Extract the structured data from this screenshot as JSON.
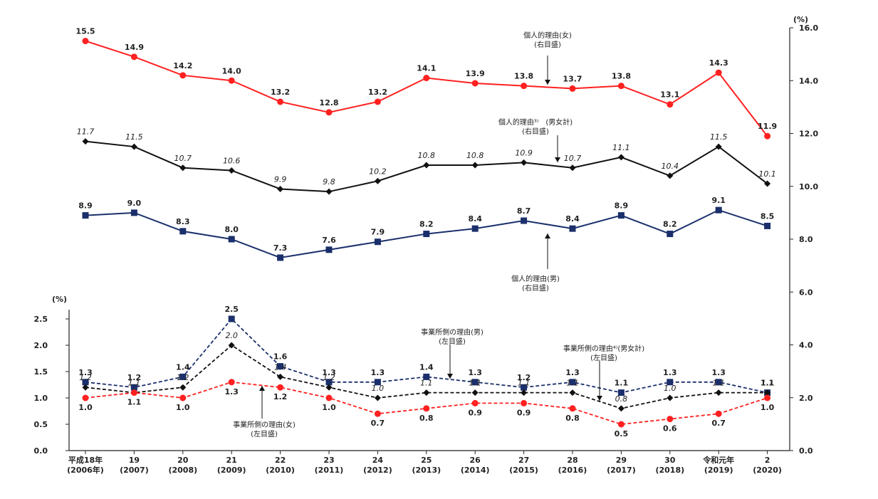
{
  "chart_data": {
    "type": "line",
    "categories": [
      [
        "平成18年",
        "(2006年)"
      ],
      [
        "19",
        "(2007)"
      ],
      [
        "20",
        "(2008)"
      ],
      [
        "21",
        "(2009)"
      ],
      [
        "22",
        "(2010)"
      ],
      [
        "23",
        "(2011)"
      ],
      [
        "24",
        "(2012)"
      ],
      [
        "25",
        "(2013)"
      ],
      [
        "26",
        "(2014)"
      ],
      [
        "27",
        "(2015)"
      ],
      [
        "28",
        "(2016)"
      ],
      [
        "29",
        "(2017)"
      ],
      [
        "30",
        "(2018)"
      ],
      [
        "令和元年",
        "(2019)"
      ],
      [
        "2",
        "(2020)"
      ]
    ],
    "left_axis": {
      "unit": "(%)",
      "ylim": [
        0,
        2.5
      ],
      "ticks": [
        "0.0",
        "0.5",
        "1.0",
        "1.5",
        "2.0",
        "2.5"
      ]
    },
    "right_axis": {
      "unit": "(%)",
      "ylim": [
        0,
        16
      ],
      "ticks": [
        "0.0",
        "2.0",
        "4.0",
        "6.0",
        "8.0",
        "10.0",
        "12.0",
        "14.0",
        "16.0"
      ]
    },
    "series": [
      {
        "key": "personal_female",
        "axis": "right",
        "color": "#ff2020",
        "marker": "circle",
        "dashed": false,
        "label_style": "bold",
        "label_pos": "above",
        "values": [
          15.5,
          14.9,
          14.2,
          14.0,
          13.2,
          12.8,
          13.2,
          14.1,
          13.9,
          13.8,
          13.7,
          13.8,
          13.1,
          14.3,
          11.9
        ],
        "labels": [
          "15.5",
          "14.9",
          "14.2",
          "14.0",
          "13.2",
          "12.8",
          "13.2",
          "14.1",
          "13.9",
          "13.8",
          "13.7",
          "13.8",
          "13.1",
          "14.3",
          "11.9"
        ]
      },
      {
        "key": "personal_total",
        "axis": "right",
        "color": "#111111",
        "marker": "diamond",
        "dashed": false,
        "label_style": "italic",
        "label_pos": "above",
        "values": [
          11.7,
          11.5,
          10.7,
          10.6,
          9.9,
          9.8,
          10.2,
          10.8,
          10.8,
          10.9,
          10.7,
          11.1,
          10.4,
          11.5,
          10.1
        ],
        "labels": [
          "11.7",
          "11.5",
          "10.7",
          "10.6",
          "9.9",
          "9.8",
          "10.2",
          "10.8",
          "10.8",
          "10.9",
          "10.7",
          "11.1",
          "10.4",
          "11.5",
          "10.1"
        ]
      },
      {
        "key": "personal_male",
        "axis": "right",
        "color": "#1a2f6b",
        "marker": "square",
        "dashed": false,
        "label_style": "bold",
        "label_pos": "above",
        "values": [
          8.9,
          9.0,
          8.3,
          8.0,
          7.3,
          7.6,
          7.9,
          8.2,
          8.4,
          8.7,
          8.4,
          8.9,
          8.2,
          9.1,
          8.5
        ],
        "labels": [
          "8.9",
          "9.0",
          "8.3",
          "8.0",
          "7.3",
          "7.6",
          "7.9",
          "8.2",
          "8.4",
          "8.7",
          "8.4",
          "8.9",
          "8.2",
          "9.1",
          "8.5"
        ]
      },
      {
        "key": "employer_male",
        "axis": "left",
        "color": "#1a2f6b",
        "marker": "square",
        "dashed": true,
        "label_style": "bold",
        "label_pos": "above",
        "values": [
          1.3,
          1.2,
          1.4,
          2.5,
          1.6,
          1.3,
          1.3,
          1.4,
          1.3,
          1.2,
          1.3,
          1.1,
          1.3,
          1.3,
          1.1
        ],
        "labels": [
          "1.3",
          "1.2",
          "1.4",
          "2.5",
          "1.6",
          "1.3",
          "1.3",
          "1.4",
          "1.3",
          "1.2",
          "1.3",
          "1.1",
          "1.3",
          "1.3",
          "1.1"
        ]
      },
      {
        "key": "employer_total",
        "axis": "left",
        "color": "#111111",
        "marker": "diamond",
        "dashed": true,
        "label_style": "italic",
        "label_pos": "above",
        "values": [
          1.2,
          1.1,
          1.2,
          2.0,
          1.4,
          1.2,
          1.0,
          1.1,
          1.1,
          1.1,
          1.1,
          0.8,
          1.0,
          1.1,
          1.1
        ],
        "labels": [
          "1.2",
          "1.1",
          "1.2",
          "2.0",
          "1.4",
          "1.2",
          "1.0",
          "1.1",
          "1.1",
          "1.1",
          "1.1",
          "0.8",
          "1.0",
          "1.1",
          "1.1"
        ]
      },
      {
        "key": "employer_female",
        "axis": "left",
        "color": "#ff2020",
        "marker": "circle",
        "dashed": true,
        "label_style": "bold",
        "label_pos": "below",
        "values": [
          1.0,
          1.1,
          1.0,
          1.3,
          1.2,
          1.0,
          0.7,
          0.8,
          0.9,
          0.9,
          0.8,
          0.5,
          0.6,
          0.7,
          1.0
        ],
        "labels": [
          "1.0",
          "1.1",
          "1.0",
          "1.3",
          "1.2",
          "1.0",
          "0.7",
          "0.8",
          "0.9",
          "0.9",
          "0.8",
          "0.5",
          "0.6",
          "0.7",
          "1.0"
        ]
      }
    ],
    "annotations": [
      {
        "key": "personal_female",
        "lines": [
          "個人的理由(女)",
          "(右目盛)"
        ]
      },
      {
        "key": "personal_total",
        "lines": [
          "個人的理由³⁾　(男女計)",
          "(右目盛)"
        ]
      },
      {
        "key": "personal_male",
        "lines": [
          "個人的理由(男)",
          "(右目盛)"
        ]
      },
      {
        "key": "employer_male",
        "lines": [
          "事業所側の理由(男)",
          "(左目盛)"
        ]
      },
      {
        "key": "employer_total",
        "lines": [
          "事業所側の理由⁴⁾(男女計)",
          "(左目盛)"
        ]
      },
      {
        "key": "employer_female",
        "lines": [
          "事業所側の理由(女)",
          "(左目盛)"
        ]
      }
    ]
  }
}
